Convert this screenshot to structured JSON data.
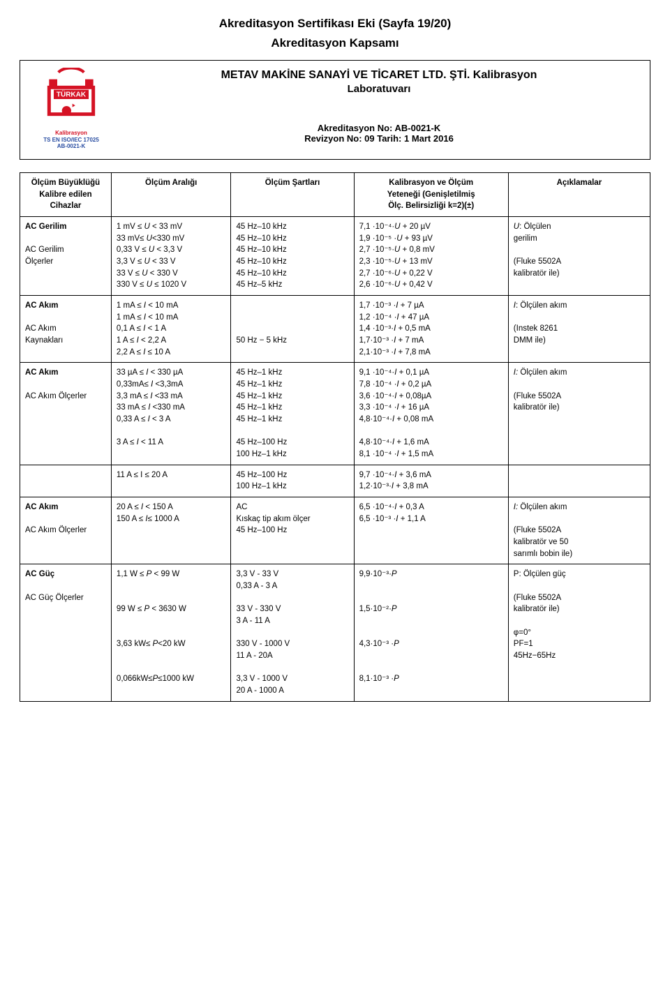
{
  "title1": "Akreditasyon Sertifikası Eki (Sayfa 19/20)",
  "title2": "Akreditasyon Kapsamı",
  "company": "METAV MAKİNE SANAYİ VE TİCARET LTD. ŞTİ. Kalibrasyon",
  "lab": "Laboratuvarı",
  "akno": "Akreditasyon No: AB-0021-K",
  "rev": "Revizyon No: 09 Tarih: 1 Mart 2016",
  "logo": {
    "brand": "TÜRKAK",
    "red": "#d51224",
    "blue": "#2a4ea2",
    "line1": "Kalibrasyon",
    "line2": "TS EN ISO/IEC 17025",
    "line3": "AB-0021-K"
  },
  "headers": {
    "c1a": "Ölçüm Büyüklüğü",
    "c1b": "Kalibre edilen",
    "c1c": "Cihazlar",
    "c2": "Ölçüm Aralığı",
    "c3": "Ölçüm Şartları",
    "c4a": "Kalibrasyon ve Ölçüm",
    "c4b": "Yeteneği (Genişletilmiş",
    "c4c": "Ölç. Belirsizliği k=2)(±)",
    "c5": "Açıklamalar"
  },
  "rows": [
    {
      "c1": [
        "<b>AC Gerilim</b>",
        "",
        "AC Gerilim",
        "Ölçerler"
      ],
      "c2": [
        "1 mV ≤ <i>U</i> < 33 mV",
        "33 mV≤ <i>U</i><330 mV",
        "0,33 V ≤ <i>U</i> < 3,3 V",
        "3,3 V ≤ <i>U</i> < 33 V",
        "33 V ≤ <i>U</i> < 330 V",
        "330 V ≤ <i>U</i> ≤ 1020 V"
      ],
      "c3": [
        "45 Hz–10 kHz",
        "45 Hz–10 kHz",
        "45 Hz–10 kHz",
        "45 Hz–10 kHz",
        "45 Hz–10 kHz",
        "45 Hz–5 kHz"
      ],
      "c4": [
        "7,1 ·10⁻⁴·<i>U</i> + 20 µV",
        "1,9 ·10⁻⁵ ·<i>U</i> + 93 µV",
        "2,7 ·10⁻⁵·<i>U</i> + 0,8 mV",
        "2,3 ·10⁻⁵·<i>U</i> + 13 mV",
        "2,7 ·10⁻⁶·<i>U</i> + 0,22 V",
        "2,6 ·10⁻⁶·<i>U</i> + 0,42 V"
      ],
      "c5": [
        "<i>U</i>: Ölçülen",
        "gerilim",
        "",
        "(Fluke 5502A",
        "kalibratör ile)"
      ]
    },
    {
      "c1": [
        "<b>AC Akım</b>",
        "",
        "AC Akım",
        "Kaynakları"
      ],
      "c2": [
        "1 mA ≤  <i>I</i> < 10 mA",
        "1 mA ≤  <i>I</i> < 10 mA",
        "0,1 A ≤  <i>I</i> < 1 A",
        "1 A ≤  <i>I</i> < 2,2 A",
        "2,2 A ≤ <i>I</i> ≤ 10 A"
      ],
      "c3": [
        "",
        "",
        "",
        "50 Hz − 5 kHz"
      ],
      "c4": [
        "1,7 ·10⁻³ ·<i>I</i>  + 7 µA",
        "1,2 ·10⁻⁴ ·<i>I</i>  + 47 µA",
        "1,4 ·10⁻³·<i>I</i>  + 0,5 mA",
        "1,7·10⁻³ ·<i>I</i>  + 7 mA",
        "2,1·10⁻³ ·<i>I</i>  + 7,8 mA"
      ],
      "c5": [
        "<i>I</i>: Ölçülen akım",
        "",
        "(Instek 8261",
        "DMM ile)"
      ]
    },
    {
      "c1": [
        "<b>AC Akım</b>",
        "",
        "AC Akım Ölçerler"
      ],
      "c2": [
        "33 µA ≤ <i>I</i> < 330 µA",
        "0,33mA≤ <i>I</i> <3,3mA",
        "3,3 mA ≤ <i>I</i> <33 mA",
        "33 mA ≤ <i>I</i> <330 mA",
        "0,33 A ≤ <i>I</i> < 3 A",
        "",
        "3 A ≤ <i>I</i> < 11 A"
      ],
      "c3": [
        "45 Hz–1 kHz",
        "45 Hz–1 kHz",
        "45 Hz–1 kHz",
        "45 Hz–1 kHz",
        "45 Hz–1 kHz",
        "",
        "45 Hz–100 Hz",
        "100 Hz–1 kHz"
      ],
      "c4": [
        "9,1 ·10⁻⁴·<i>I</i> + 0,1 µA",
        "7,8 ·10⁻⁴ ·<i>I</i> + 0,2 µA",
        "3,6 ·10⁻⁴·<i>I</i> + 0,08µA",
        "3,3 ·10⁻⁴ ·<i>I</i> + 16 µA",
        "4,8·10⁻⁴·<i>I</i> + 0,08 mA",
        "",
        "4,8·10⁻⁴·<i>I</i> + 1,6 mA",
        "8,1 ·10⁻⁴ ·<i>I</i> + 1,5 mA"
      ],
      "c5": [
        "<i>I:</i> Ölçülen akım",
        "",
        "(Fluke 5502A",
        "kalibratör ile)"
      ]
    },
    {
      "c1": [
        "",
        ""
      ],
      "c2": [
        "11 A ≤ I ≤ 20 A"
      ],
      "c3": [
        "45 Hz–100 Hz",
        "100 Hz–1 kHz"
      ],
      "c4": [
        "9,7 ·10⁻⁴·<i>I</i> + 3,6 mA",
        "1,2·10⁻³·<i>I</i> + 3,8 mA"
      ],
      "c5": [
        "",
        ""
      ]
    },
    {
      "c1": [
        "<b>AC Akım</b>",
        "",
        "AC Akım Ölçerler"
      ],
      "c2": [
        "20 A ≤ <i>I</i> < 150 A",
        "150 A ≤ <i>I</i>≤ 1000 A"
      ],
      "c3": [
        "AC",
        "Kıskaç tip akım ölçer",
        "45 Hz–100 Hz"
      ],
      "c4": [
        "6,5 ·10⁻⁴·<i>I</i> + 0,3 A",
        "6,5 ·10⁻³ ·<i>I</i> + 1,1 A"
      ],
      "c5": [
        "<i>I:</i> Ölçülen akım",
        "",
        "(Fluke 5502A",
        "kalibratör ve 50",
        "sarımlı bobin ile)"
      ]
    },
    {
      "c1": [
        "<b>AC Güç</b>",
        "",
        "AC Güç Ölçerler"
      ],
      "c2": [
        "1,1 W ≤ <i>P</i> < 99 W",
        "",
        "",
        "99 W ≤ <i>P</i> < 3630 W",
        "",
        "",
        "3,63 kW≤ <i>P</i><20 kW",
        "",
        "",
        "0,066kW≤<i>P</i>≤1000 kW"
      ],
      "c3": [
        "3,3 V - 33 V",
        "0,33 A - 3 A",
        "",
        "33 V - 330 V",
        "3 A - 11 A",
        "",
        "330 V - 1000 V",
        "11 A - 20A",
        "",
        "3,3 V - 1000 V",
        "20 A - 1000 A"
      ],
      "c4": [
        "9,9·10⁻³·<i>P</i>",
        "",
        "",
        "1,5·10⁻²·<i>P</i>",
        "",
        "",
        "4,3·10⁻³ ·<i>P</i>",
        "",
        "",
        "8,1·10⁻³ ·<i>P</i>"
      ],
      "c5": [
        "P: Ölçülen güç",
        "",
        "(Fluke 5502A",
        "kalibratör ile)",
        "",
        "φ=0°",
        "PF=1",
        "45Hz−65Hz"
      ]
    }
  ]
}
